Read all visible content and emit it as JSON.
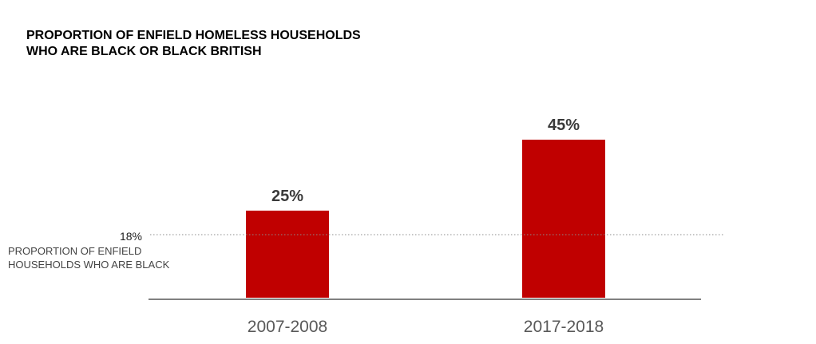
{
  "chart_data": {
    "type": "bar",
    "title_lines": [
      "PROPORTION OF ENFIELD HOMELESS HOUSEHOLDS",
      "WHO ARE BLACK OR BLACK BRITISH"
    ],
    "categories": [
      "2007-2008",
      "2017-2018"
    ],
    "values": [
      25,
      45
    ],
    "value_labels": [
      "25%",
      "45%"
    ],
    "reference_line": {
      "value": 18,
      "value_label": "18%",
      "label_lines": [
        "PROPORTION OF ENFIELD",
        "HOUSEHOLDS WHO ARE BLACK"
      ]
    },
    "ylim": [
      0,
      50
    ],
    "grid": false,
    "legend": "none",
    "bar_color": "#c00000",
    "axis_color": "#808080"
  }
}
